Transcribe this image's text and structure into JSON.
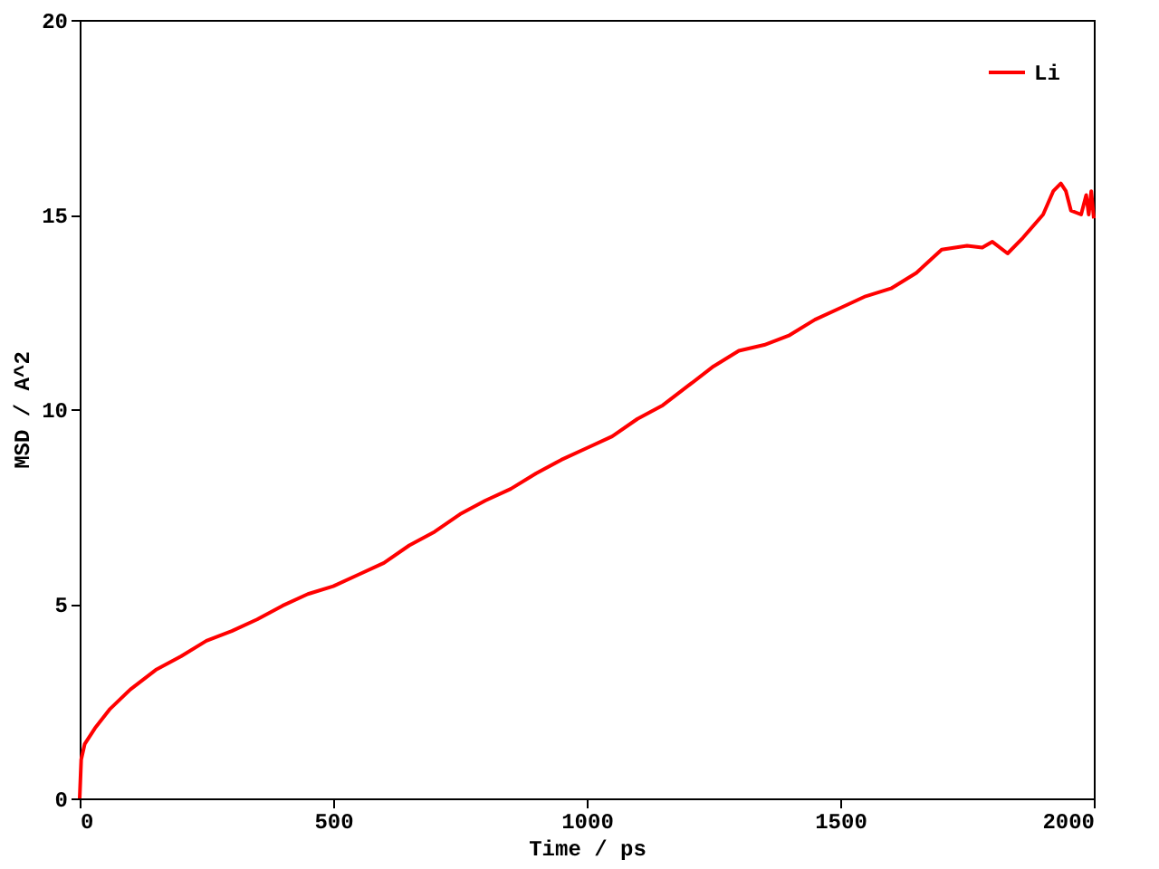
{
  "chart_data": {
    "type": "line",
    "xlabel": "Time / ps",
    "ylabel": "MSD / A^2",
    "x": [
      0,
      3,
      10,
      30,
      60,
      100,
      150,
      200,
      250,
      300,
      350,
      400,
      450,
      500,
      550,
      600,
      650,
      700,
      750,
      800,
      850,
      900,
      950,
      1000,
      1050,
      1100,
      1150,
      1200,
      1250,
      1300,
      1350,
      1400,
      1450,
      1500,
      1550,
      1600,
      1650,
      1700,
      1750,
      1780,
      1800,
      1830,
      1860,
      1900,
      1920,
      1935,
      1945,
      1955,
      1975,
      1985,
      1990,
      1995,
      2000
    ],
    "series": [
      {
        "name": "Li",
        "color": "#ff0000",
        "values": [
          0,
          1.0,
          1.4,
          1.8,
          2.3,
          2.8,
          3.3,
          3.65,
          4.05,
          4.3,
          4.6,
          4.95,
          5.25,
          5.45,
          5.75,
          6.05,
          6.5,
          6.85,
          7.3,
          7.65,
          7.95,
          8.35,
          8.7,
          9.0,
          9.3,
          9.75,
          10.1,
          10.6,
          11.1,
          11.5,
          11.65,
          11.9,
          12.3,
          12.6,
          12.9,
          13.1,
          13.5,
          14.1,
          14.2,
          14.15,
          14.3,
          14.0,
          14.4,
          15.0,
          15.6,
          15.8,
          15.6,
          15.1,
          15.0,
          15.5,
          15.0,
          15.6,
          14.9
        ]
      }
    ],
    "xlim": [
      0,
      2000
    ],
    "xticks": [
      0,
      500,
      1000,
      1500,
      2000
    ],
    "ylim": [
      0,
      20
    ],
    "yticks": [
      0,
      5,
      10,
      15,
      20
    ],
    "legend": "top right",
    "grid": false,
    "marker": "none",
    "line_style": "solid"
  }
}
